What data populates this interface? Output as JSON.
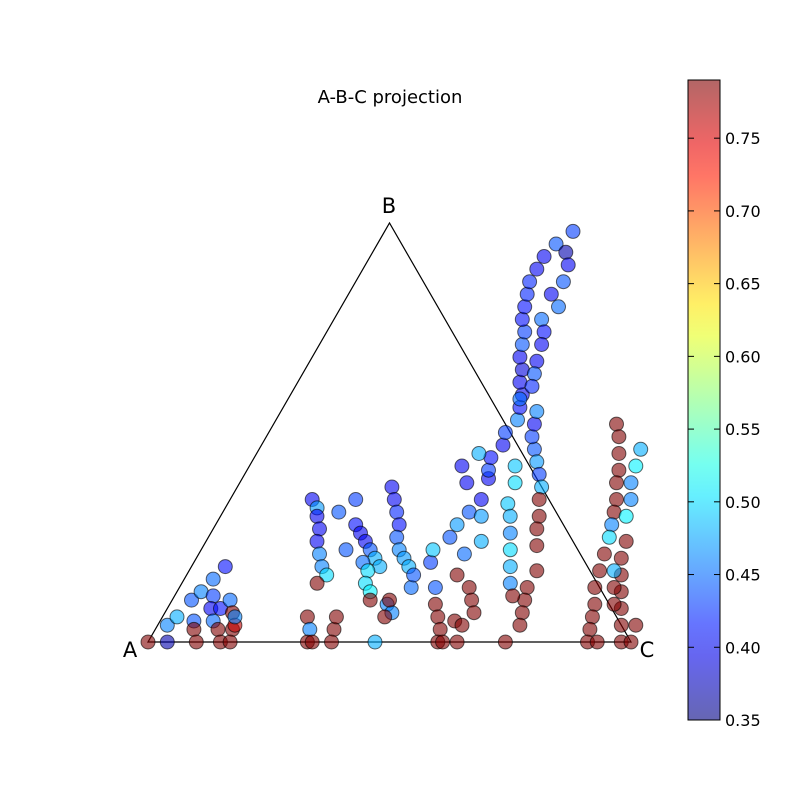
{
  "chart_data": {
    "type": "scatter",
    "projection": "ternary",
    "title": "A-B-C projection",
    "vertex_labels": [
      "A",
      "B",
      "C"
    ],
    "colorbar": {
      "colormap": "jet",
      "range": [
        0.35,
        0.79
      ],
      "ticks": [
        "0.35",
        "0.40",
        "0.45",
        "0.50",
        "0.55",
        "0.60",
        "0.65",
        "0.70",
        "0.75"
      ],
      "tick_values": [
        0.35,
        0.4,
        0.45,
        0.5,
        0.55,
        0.6,
        0.65,
        0.7,
        0.75
      ]
    },
    "marker_alpha": 0.6,
    "points_note_fields": [
      "b",
      "c",
      "value"
    ],
    "points": [
      [
        0.0,
        0.0,
        0.79
      ],
      [
        0.0,
        0.04,
        0.37
      ],
      [
        0.04,
        0.02,
        0.46
      ],
      [
        0.06,
        0.03,
        0.48
      ],
      [
        0.1,
        0.04,
        0.44
      ],
      [
        0.12,
        0.05,
        0.46
      ],
      [
        0.15,
        0.06,
        0.45
      ],
      [
        0.18,
        0.07,
        0.41
      ],
      [
        0.11,
        0.08,
        0.43
      ],
      [
        0.08,
        0.09,
        0.4
      ],
      [
        0.05,
        0.07,
        0.44
      ],
      [
        0.03,
        0.08,
        0.79
      ],
      [
        0.05,
        0.11,
        0.45
      ],
      [
        0.08,
        0.11,
        0.41
      ],
      [
        0.1,
        0.12,
        0.45
      ],
      [
        0.07,
        0.14,
        0.79
      ],
      [
        0.03,
        0.13,
        0.79
      ],
      [
        0.03,
        0.16,
        0.79
      ],
      [
        0.0,
        0.1,
        0.79
      ],
      [
        0.0,
        0.15,
        0.79
      ],
      [
        0.0,
        0.17,
        0.79
      ],
      [
        0.04,
        0.16,
        0.76
      ],
      [
        0.06,
        0.15,
        0.46
      ],
      [
        0.34,
        0.17,
        0.4
      ],
      [
        0.32,
        0.19,
        0.47
      ],
      [
        0.3,
        0.2,
        0.4
      ],
      [
        0.27,
        0.22,
        0.4
      ],
      [
        0.24,
        0.23,
        0.4
      ],
      [
        0.21,
        0.25,
        0.46
      ],
      [
        0.18,
        0.27,
        0.46
      ],
      [
        0.16,
        0.29,
        0.5
      ],
      [
        0.14,
        0.28,
        0.79
      ],
      [
        0.06,
        0.3,
        0.79
      ],
      [
        0.03,
        0.32,
        0.46
      ],
      [
        0.0,
        0.33,
        0.79
      ],
      [
        0.0,
        0.34,
        0.79
      ],
      [
        0.03,
        0.37,
        0.79
      ],
      [
        0.06,
        0.36,
        0.79
      ],
      [
        0.0,
        0.38,
        0.79
      ],
      [
        0.34,
        0.26,
        0.43
      ],
      [
        0.31,
        0.24,
        0.44
      ],
      [
        0.28,
        0.29,
        0.41
      ],
      [
        0.26,
        0.31,
        0.4
      ],
      [
        0.24,
        0.33,
        0.4
      ],
      [
        0.22,
        0.35,
        0.44
      ],
      [
        0.2,
        0.37,
        0.48
      ],
      [
        0.18,
        0.39,
        0.48
      ],
      [
        0.22,
        0.3,
        0.44
      ],
      [
        0.19,
        0.35,
        0.45
      ],
      [
        0.17,
        0.37,
        0.5
      ],
      [
        0.14,
        0.38,
        0.5
      ],
      [
        0.12,
        0.4,
        0.51
      ],
      [
        0.1,
        0.41,
        0.79
      ],
      [
        0.09,
        0.45,
        0.46
      ],
      [
        0.07,
        0.47,
        0.46
      ],
      [
        0.37,
        0.32,
        0.4
      ],
      [
        0.34,
        0.34,
        0.4
      ],
      [
        0.31,
        0.36,
        0.42
      ],
      [
        0.28,
        0.38,
        0.41
      ],
      [
        0.25,
        0.39,
        0.44
      ],
      [
        0.22,
        0.41,
        0.46
      ],
      [
        0.2,
        0.43,
        0.47
      ],
      [
        0.18,
        0.45,
        0.48
      ],
      [
        0.0,
        0.47,
        0.48
      ],
      [
        0.06,
        0.46,
        0.79
      ],
      [
        0.1,
        0.45,
        0.79
      ],
      [
        0.13,
        0.48,
        0.45
      ],
      [
        0.16,
        0.47,
        0.44
      ],
      [
        0.19,
        0.49,
        0.43
      ],
      [
        0.22,
        0.48,
        0.49
      ],
      [
        0.25,
        0.5,
        0.44
      ],
      [
        0.28,
        0.5,
        0.47
      ],
      [
        0.31,
        0.51,
        0.44
      ],
      [
        0.34,
        0.52,
        0.4
      ],
      [
        0.39,
        0.51,
        0.4
      ],
      [
        0.41,
        0.5,
        0.43
      ],
      [
        0.44,
        0.49,
        0.41
      ],
      [
        0.47,
        0.5,
        0.4
      ],
      [
        0.5,
        0.49,
        0.43
      ],
      [
        0.45,
        0.46,
        0.48
      ],
      [
        0.42,
        0.44,
        0.4
      ],
      [
        0.38,
        0.47,
        0.4
      ],
      [
        0.3,
        0.54,
        0.47
      ],
      [
        0.24,
        0.57,
        0.48
      ],
      [
        0.21,
        0.55,
        0.45
      ],
      [
        0.13,
        0.53,
        0.44
      ],
      [
        0.09,
        0.55,
        0.79
      ],
      [
        0.06,
        0.57,
        0.79
      ],
      [
        0.03,
        0.59,
        0.79
      ],
      [
        0.0,
        0.6,
        0.79
      ],
      [
        0.0,
        0.61,
        0.79
      ],
      [
        0.16,
        0.56,
        0.79
      ],
      [
        0.13,
        0.6,
        0.79
      ],
      [
        0.1,
        0.62,
        0.79
      ],
      [
        0.07,
        0.64,
        0.79
      ],
      [
        0.05,
        0.61,
        0.79
      ],
      [
        0.04,
        0.63,
        0.79
      ],
      [
        0.0,
        0.64,
        0.79
      ],
      [
        0.53,
        0.5,
        0.46
      ],
      [
        0.56,
        0.49,
        0.41
      ],
      [
        0.59,
        0.48,
        0.4
      ],
      [
        0.62,
        0.46,
        0.4
      ],
      [
        0.65,
        0.45,
        0.39
      ],
      [
        0.68,
        0.43,
        0.4
      ],
      [
        0.71,
        0.42,
        0.44
      ],
      [
        0.74,
        0.41,
        0.43
      ],
      [
        0.77,
        0.39,
        0.41
      ],
      [
        0.8,
        0.38,
        0.41
      ],
      [
        0.83,
        0.37,
        0.42
      ],
      [
        0.86,
        0.36,
        0.42
      ],
      [
        0.89,
        0.36,
        0.4
      ],
      [
        0.92,
        0.36,
        0.4
      ],
      [
        0.95,
        0.37,
        0.44
      ],
      [
        0.98,
        0.39,
        0.43
      ],
      [
        0.93,
        0.4,
        0.37
      ],
      [
        0.9,
        0.42,
        0.4
      ],
      [
        0.86,
        0.43,
        0.44
      ],
      [
        0.83,
        0.42,
        0.4
      ],
      [
        0.8,
        0.45,
        0.45
      ],
      [
        0.77,
        0.43,
        0.45
      ],
      [
        0.74,
        0.45,
        0.41
      ],
      [
        0.71,
        0.46,
        0.4
      ],
      [
        0.67,
        0.47,
        0.4
      ],
      [
        0.64,
        0.48,
        0.44
      ],
      [
        0.61,
        0.49,
        0.42
      ],
      [
        0.58,
        0.48,
        0.45
      ],
      [
        0.46,
        0.57,
        0.44
      ],
      [
        0.43,
        0.59,
        0.47
      ],
      [
        0.4,
        0.61,
        0.43
      ],
      [
        0.37,
        0.63,
        0.48
      ],
      [
        0.34,
        0.64,
        0.79
      ],
      [
        0.3,
        0.66,
        0.79
      ],
      [
        0.27,
        0.67,
        0.79
      ],
      [
        0.23,
        0.69,
        0.79
      ],
      [
        0.17,
        0.72,
        0.79
      ],
      [
        0.13,
        0.72,
        0.79
      ],
      [
        0.1,
        0.73,
        0.79
      ],
      [
        0.07,
        0.74,
        0.79
      ],
      [
        0.04,
        0.75,
        0.79
      ],
      [
        0.0,
        0.74,
        0.79
      ],
      [
        0.49,
        0.55,
        0.43
      ],
      [
        0.52,
        0.54,
        0.4
      ],
      [
        0.55,
        0.53,
        0.46
      ],
      [
        0.42,
        0.55,
        0.49
      ],
      [
        0.38,
        0.57,
        0.5
      ],
      [
        0.33,
        0.58,
        0.49
      ],
      [
        0.3,
        0.6,
        0.48
      ],
      [
        0.26,
        0.62,
        0.46
      ],
      [
        0.22,
        0.64,
        0.5
      ],
      [
        0.18,
        0.66,
        0.48
      ],
      [
        0.14,
        0.68,
        0.46
      ],
      [
        0.11,
        0.7,
        0.79
      ],
      [
        0.52,
        0.71,
        0.79
      ],
      [
        0.49,
        0.73,
        0.79
      ],
      [
        0.45,
        0.75,
        0.79
      ],
      [
        0.41,
        0.77,
        0.79
      ],
      [
        0.38,
        0.78,
        0.79
      ],
      [
        0.34,
        0.8,
        0.79
      ],
      [
        0.31,
        0.81,
        0.79
      ],
      [
        0.28,
        0.82,
        0.46
      ],
      [
        0.25,
        0.83,
        0.5
      ],
      [
        0.21,
        0.84,
        0.79
      ],
      [
        0.17,
        0.85,
        0.79
      ],
      [
        0.13,
        0.86,
        0.79
      ],
      [
        0.09,
        0.88,
        0.79
      ],
      [
        0.06,
        0.89,
        0.79
      ],
      [
        0.03,
        0.9,
        0.79
      ],
      [
        0.0,
        0.91,
        0.79
      ],
      [
        0.46,
        0.79,
        0.48
      ],
      [
        0.42,
        0.8,
        0.51
      ],
      [
        0.38,
        0.81,
        0.46
      ],
      [
        0.34,
        0.83,
        0.46
      ],
      [
        0.3,
        0.84,
        0.51
      ],
      [
        0.24,
        0.87,
        0.79
      ],
      [
        0.2,
        0.88,
        0.79
      ],
      [
        0.16,
        0.9,
        0.79
      ],
      [
        0.12,
        0.92,
        0.79
      ],
      [
        0.08,
        0.94,
        0.79
      ],
      [
        0.04,
        0.96,
        0.79
      ],
      [
        0.0,
        0.98,
        0.79
      ],
      [
        0.0,
        1.0,
        0.79
      ],
      [
        0.04,
        0.99,
        0.79
      ],
      [
        0.0,
        0.93,
        0.79
      ],
      [
        0.09,
        0.92,
        0.79
      ],
      [
        0.13,
        0.9,
        0.79
      ],
      [
        0.17,
        0.88,
        0.48
      ]
    ]
  }
}
